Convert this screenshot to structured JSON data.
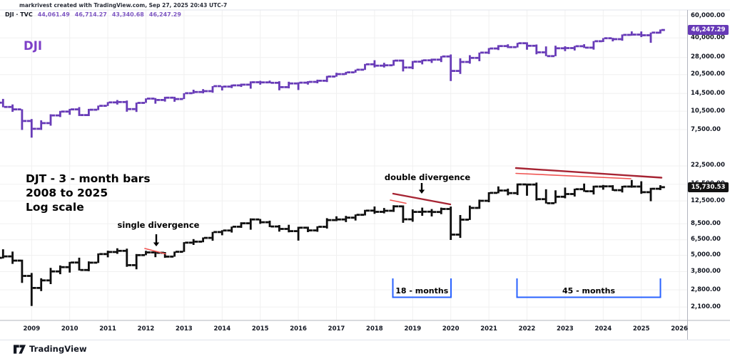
{
  "header": {
    "attribution": "markrivest created with TradingView.com, Sep 27, 2025 20:43 UTC-7",
    "legend": {
      "symbol": "DJI · TVC",
      "open": "44,061.49",
      "high": "46,714.27",
      "low": "43,340.68",
      "close": "46,247.29"
    }
  },
  "footer": {
    "logo_text": "TradingView"
  },
  "annotations": {
    "dji_label": "DJI",
    "djt_note_lines": [
      "DJT - 3 - month bars",
      "2008 to 2025",
      "Log scale"
    ],
    "single_divergence": "single divergence",
    "double_divergence": "double divergence"
  },
  "price_badges": {
    "dji": "46,247.29",
    "djt": "15,730.53"
  },
  "colors": {
    "dji_purple": "#673ab7",
    "dji_title_purple": "#7d3fc7",
    "legend_value_purple": "#7e57c2",
    "djt_black": "#0d0d0d",
    "trend_dark_red": "#a62433",
    "trend_light_red": "#ef5350",
    "bracket_blue": "#2962ff",
    "gridline": "#f0f0f0",
    "axis_border": "#b2b5be",
    "separator": "#e0e3eb"
  },
  "chart_data": {
    "type": "bar",
    "subtype": "ohlc-quarterly-3-month-bars",
    "log_scale": true,
    "title": "DJI and DJT, 3-month bars, 2008 to 2025, log scale",
    "x_start_quarter": "2008-Q1",
    "x_end_quarter": "2025-Q3",
    "time_axis_years": [
      2009,
      2010,
      2011,
      2012,
      2013,
      2014,
      2015,
      2016,
      2017,
      2018,
      2019,
      2020,
      2021,
      2022,
      2023,
      2024,
      2025,
      2026
    ],
    "series": [
      {
        "name": "DJI",
        "color": "#673ab7",
        "badge_color": "#673ab7",
        "last_value": 46247.29,
        "axis_ticks": [
          60000,
          40000,
          28000,
          20500,
          14500,
          10500,
          7500
        ],
        "ylim": [
          4458,
          64980
        ],
        "ohlc": [
          [
            13044,
            13280,
            11508,
            12263
          ],
          [
            12263,
            13136,
            11288,
            11350
          ],
          [
            11350,
            11867,
            10366,
            10851
          ],
          [
            10851,
            10882,
            7449,
            8776
          ],
          [
            8776,
            9088,
            6470,
            7609
          ],
          [
            7609,
            8877,
            7450,
            8447
          ],
          [
            8447,
            9918,
            8057,
            9712
          ],
          [
            9712,
            10549,
            9430,
            10428
          ],
          [
            10428,
            10955,
            9835,
            10857
          ],
          [
            10857,
            11309,
            9614,
            9774
          ],
          [
            9774,
            10948,
            9596,
            10788
          ],
          [
            10788,
            11625,
            10711,
            11578
          ],
          [
            11578,
            12391,
            11555,
            12320
          ],
          [
            12320,
            12876,
            11862,
            12414
          ],
          [
            12414,
            12753,
            10404,
            10913
          ],
          [
            10913,
            12284,
            10362,
            12218
          ],
          [
            12218,
            13264,
            12218,
            13212
          ],
          [
            13212,
            13338,
            12035,
            12880
          ],
          [
            12880,
            13653,
            12492,
            13437
          ],
          [
            13437,
            13661,
            12471,
            13104
          ],
          [
            13104,
            14585,
            13104,
            14579
          ],
          [
            14579,
            15542,
            14444,
            14910
          ],
          [
            14910,
            15709,
            14551,
            15130
          ],
          [
            15130,
            16588,
            14719,
            16577
          ],
          [
            16577,
            16631,
            15340,
            16458
          ],
          [
            16458,
            17068,
            16015,
            16827
          ],
          [
            16827,
            17350,
            16333,
            17043
          ],
          [
            17043,
            18103,
            15855,
            17823
          ],
          [
            17823,
            18288,
            17037,
            17776
          ],
          [
            17776,
            18351,
            17465,
            17620
          ],
          [
            17620,
            18137,
            15370,
            16285
          ],
          [
            16285,
            17977,
            15938,
            17425
          ],
          [
            17425,
            17790,
            15450,
            17685
          ],
          [
            17685,
            18167,
            17063,
            17930
          ],
          [
            17930,
            18668,
            17472,
            18308
          ],
          [
            18308,
            19987,
            17883,
            19763
          ],
          [
            19763,
            21169,
            19718,
            20663
          ],
          [
            20663,
            21535,
            20379,
            21350
          ],
          [
            21350,
            22419,
            21197,
            22405
          ],
          [
            22405,
            24876,
            22308,
            24719
          ],
          [
            24719,
            26617,
            23344,
            24103
          ],
          [
            24103,
            25402,
            23303,
            24271
          ],
          [
            24271,
            26769,
            24078,
            26458
          ],
          [
            26458,
            26952,
            21713,
            23327
          ],
          [
            23327,
            26241,
            22638,
            25929
          ],
          [
            25929,
            26907,
            24680,
            26600
          ],
          [
            26600,
            27399,
            25340,
            26917
          ],
          [
            26917,
            28702,
            25743,
            28538
          ],
          [
            28538,
            29569,
            18214,
            21917
          ],
          [
            21917,
            27572,
            20735,
            25813
          ],
          [
            25813,
            29199,
            25015,
            27782
          ],
          [
            27782,
            30637,
            26144,
            30606
          ],
          [
            30606,
            33259,
            29856,
            32981
          ],
          [
            32981,
            35092,
            32071,
            34503
          ],
          [
            34503,
            35631,
            33271,
            33844
          ],
          [
            33844,
            36565,
            33613,
            36338
          ],
          [
            36338,
            36953,
            32272,
            34678
          ],
          [
            34678,
            35492,
            29653,
            30775
          ],
          [
            30775,
            34281,
            28716,
            28726
          ],
          [
            28726,
            34712,
            28661,
            33147
          ],
          [
            33147,
            34343,
            31430,
            33274
          ],
          [
            33274,
            34588,
            31805,
            34408
          ],
          [
            34408,
            35679,
            33306,
            33508
          ],
          [
            33508,
            37778,
            32327,
            37690
          ],
          [
            37690,
            39889,
            37122,
            39807
          ],
          [
            39807,
            40077,
            37611,
            39119
          ],
          [
            39119,
            42628,
            38000,
            42330
          ],
          [
            42330,
            45074,
            41647,
            42544
          ],
          [
            42544,
            45054,
            40661,
            42002
          ],
          [
            42002,
            44169,
            36611,
            44095
          ],
          [
            44061.49,
            46714.27,
            43340.68,
            46247.29
          ]
        ]
      },
      {
        "name": "DJT",
        "color": "#0d0d0d",
        "badge_color": "#131313",
        "last_value": 15730.53,
        "axis_ticks": [
          22500,
          16500,
          12500,
          8500,
          6500,
          5000,
          3800,
          2800,
          2100
        ],
        "ylim": [
          1674,
          25360
        ],
        "ohlc": [
          [
            4571,
            4976,
            4140,
            4797
          ],
          [
            4797,
            5537,
            4745,
            4910
          ],
          [
            4910,
            5329,
            4331,
            4578
          ],
          [
            4578,
            4651,
            3149,
            3537
          ],
          [
            3537,
            3717,
            2134,
            2891
          ],
          [
            2891,
            3399,
            2740,
            3280
          ],
          [
            3280,
            4052,
            3085,
            3815
          ],
          [
            3815,
            4217,
            3640,
            4100
          ],
          [
            4100,
            4478,
            3743,
            4430
          ],
          [
            4430,
            4806,
            3872,
            3906
          ],
          [
            3906,
            4516,
            3829,
            4423
          ],
          [
            4423,
            5163,
            4399,
            5107
          ],
          [
            5107,
            5406,
            4839,
            5290
          ],
          [
            5290,
            5627,
            5123,
            5394
          ],
          [
            5394,
            5596,
            4124,
            4239
          ],
          [
            4239,
            5107,
            3951,
            5020
          ],
          [
            5020,
            5391,
            5010,
            5253
          ],
          [
            5253,
            5334,
            4847,
            5218
          ],
          [
            5218,
            5282,
            4795,
            4893
          ],
          [
            4893,
            5329,
            4891,
            5307
          ],
          [
            5307,
            6244,
            5307,
            6191
          ],
          [
            6191,
            6568,
            5956,
            6296
          ],
          [
            6296,
            6754,
            6237,
            6706
          ],
          [
            6706,
            7418,
            6391,
            7401
          ],
          [
            7401,
            7627,
            7009,
            7591
          ],
          [
            7591,
            8116,
            7341,
            8095
          ],
          [
            8095,
            8715,
            7935,
            8576
          ],
          [
            8576,
            9310,
            7700,
            9140
          ],
          [
            9140,
            9217,
            8482,
            8722
          ],
          [
            8722,
            8964,
            8046,
            8119
          ],
          [
            8119,
            8317,
            7452,
            7799
          ],
          [
            7799,
            8358,
            7360,
            7509
          ],
          [
            7509,
            8079,
            6403,
            7955
          ],
          [
            7955,
            8089,
            7383,
            7600
          ],
          [
            7600,
            8155,
            7434,
            8078
          ],
          [
            8078,
            9339,
            7843,
            9044
          ],
          [
            9044,
            9640,
            8890,
            9139
          ],
          [
            9139,
            9705,
            8744,
            9417
          ],
          [
            9417,
            9938,
            8971,
            9883
          ],
          [
            9883,
            10742,
            9775,
            10612
          ],
          [
            10612,
            11373,
            10048,
            10398
          ],
          [
            10398,
            11086,
            10128,
            10584
          ],
          [
            10584,
            11624,
            10385,
            11402
          ],
          [
            11402,
            11570,
            8637,
            9170
          ],
          [
            9170,
            10819,
            8793,
            10387
          ],
          [
            10387,
            11148,
            9715,
            10419
          ],
          [
            10419,
            10886,
            9613,
            10374
          ],
          [
            10374,
            11148,
            9985,
            10901
          ],
          [
            10901,
            11359,
            6481,
            7086
          ],
          [
            7086,
            9850,
            6703,
            9113
          ],
          [
            9113,
            11544,
            9068,
            11106
          ],
          [
            11106,
            12751,
            10925,
            12506
          ],
          [
            12506,
            14448,
            12215,
            14297
          ],
          [
            14297,
            15943,
            14203,
            14863
          ],
          [
            14863,
            15348,
            13722,
            14248
          ],
          [
            14248,
            16736,
            13786,
            16478
          ],
          [
            16478,
            16718,
            13617,
            16432
          ],
          [
            16432,
            16998,
            12570,
            12868
          ],
          [
            12868,
            15193,
            11961,
            12020
          ],
          [
            12020,
            14925,
            11999,
            13391
          ],
          [
            13391,
            15640,
            13049,
            14016
          ],
          [
            14016,
            15334,
            13444,
            15209
          ],
          [
            15209,
            16717,
            14550,
            14699
          ],
          [
            14699,
            16137,
            13926,
            15898
          ],
          [
            15898,
            16330,
            15088,
            15949
          ],
          [
            15949,
            16272,
            14795,
            14957
          ],
          [
            14957,
            16094,
            14405,
            15891
          ],
          [
            15891,
            17754,
            15606,
            15896
          ],
          [
            15896,
            17364,
            14060,
            14455
          ],
          [
            14455,
            15560,
            12426,
            15320
          ],
          [
            15320,
            16272,
            14991,
            15730.53
          ]
        ]
      }
    ],
    "trendlines": [
      {
        "id": "single-divergence-trendline",
        "color": "#ef5350",
        "width": 1.6,
        "x1": 203,
        "y1": 349,
        "x2": 232,
        "y2": 356.5
      },
      {
        "id": "double-divergence-trendline-dark",
        "color": "#a62433",
        "width": 2.4,
        "x1": 551,
        "y1": 272,
        "x2": 631,
        "y2": 287
      },
      {
        "id": "double-divergence-trendline-light",
        "color": "#ef5350",
        "width": 1.6,
        "x1": 547,
        "y1": 281,
        "x2": 569,
        "y2": 285.5
      },
      {
        "id": "top-divergence-trendline-dark",
        "color": "#a62433",
        "width": 2.4,
        "x1": 723,
        "y1": 236,
        "x2": 927,
        "y2": 249.5
      },
      {
        "id": "top-divergence-trendline-light",
        "color": "#ef5350",
        "width": 1.6,
        "x1": 723,
        "y1": 243.5,
        "x2": 884,
        "y2": 251
      }
    ],
    "arrows": [
      {
        "x": 219,
        "y1": 329,
        "y2": 346
      },
      {
        "x": 591,
        "y1": 257,
        "y2": 272
      }
    ],
    "brackets": [
      {
        "label": "18 - months",
        "x1": 550.5,
        "x2": 632,
        "y_top": 391,
        "y_bottom": 417.5
      },
      {
        "label": "45 - months",
        "x1": 724.5,
        "x2": 925.5,
        "y_top": 391,
        "y_bottom": 417.5
      }
    ]
  }
}
